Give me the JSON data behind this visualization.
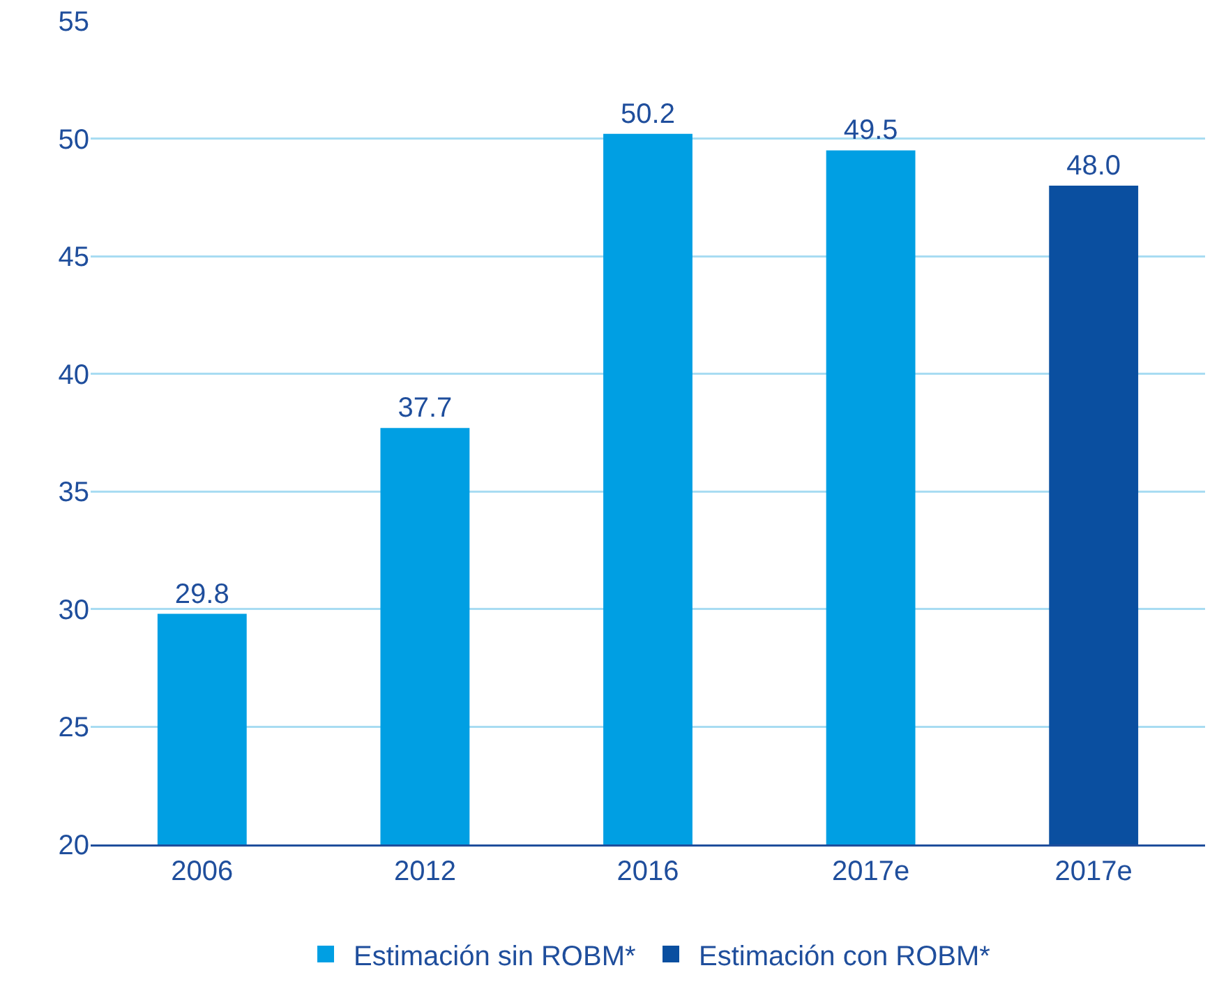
{
  "chart_data": {
    "type": "bar",
    "categories": [
      "2006",
      "2012",
      "2016",
      "2017e",
      "2017e"
    ],
    "series": [
      {
        "name": "Estimación sin ROBM*",
        "color": "#009fe3",
        "values": [
          29.8,
          37.7,
          50.2,
          49.5,
          null
        ],
        "value_labels": [
          "29.8",
          "37.7",
          "50.2",
          "49.5",
          null
        ]
      },
      {
        "name": "Estimación con ROBM*",
        "color": "#0a4fa0",
        "values": [
          null,
          null,
          null,
          null,
          48.0
        ],
        "value_labels": [
          null,
          null,
          null,
          null,
          "48.0"
        ]
      }
    ],
    "ylim": [
      20,
      55
    ],
    "yticks": [
      20,
      25,
      30,
      35,
      40,
      45,
      50,
      55
    ],
    "grid": "y",
    "legend": "bottom"
  }
}
